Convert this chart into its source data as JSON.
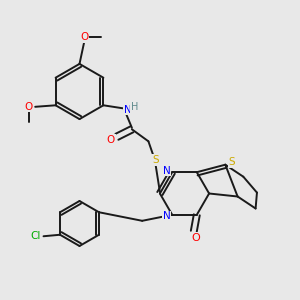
{
  "bg_color": "#e8e8e8",
  "bond_color": "#1a1a1a",
  "atom_colors": {
    "O": "#ff0000",
    "N": "#0000ff",
    "S": "#ccaa00",
    "Cl": "#00aa00",
    "H": "#5f8a8b",
    "C": "#1a1a1a"
  },
  "figsize": [
    3.0,
    3.0
  ],
  "dpi": 100
}
